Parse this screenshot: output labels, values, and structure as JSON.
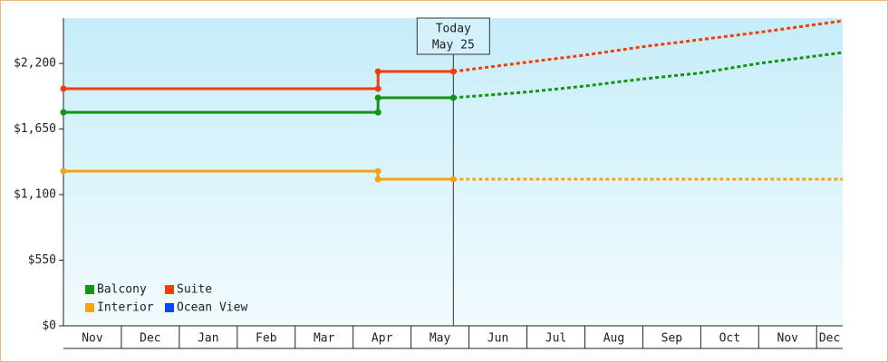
{
  "chart_data": {
    "type": "line",
    "categories": [
      "Nov",
      "Dec",
      "Jan",
      "Feb",
      "Mar",
      "Apr",
      "May",
      "Jun",
      "Jul",
      "Aug",
      "Sep",
      "Oct",
      "Nov",
      "Dec"
    ],
    "xlim": [
      0,
      13.45
    ],
    "xticks": [
      1,
      2,
      3,
      4,
      5,
      6,
      7,
      8,
      9,
      10,
      11,
      12,
      13
    ],
    "ylim": [
      0,
      2580
    ],
    "yticks": [
      {
        "value": 0,
        "label": "$0"
      },
      {
        "value": 550,
        "label": "$550"
      },
      {
        "value": 1100,
        "label": "$1,100"
      },
      {
        "value": 1650,
        "label": "$1,650"
      },
      {
        "value": 2200,
        "label": "$2,200"
      }
    ],
    "annotation": {
      "x": 6.73,
      "lines": [
        "Today",
        "May 25"
      ]
    },
    "legend": "lower left",
    "series": [
      {
        "name": "Balcony",
        "color": "#149414",
        "x": [
          0,
          5.43,
          5.43,
          6.73
        ],
        "values": [
          1790,
          1790,
          1912,
          1912
        ],
        "forecast_x": [
          6.73,
          8,
          9,
          10,
          11,
          12,
          13.45
        ],
        "forecast_values": [
          1912,
          1960,
          2010,
          2070,
          2120,
          2200,
          2291
        ]
      },
      {
        "name": "Suite",
        "color": "#f53c0a",
        "x": [
          0,
          5.43,
          5.43,
          6.73
        ],
        "values": [
          1988,
          1988,
          2132,
          2132
        ],
        "forecast_x": [
          6.73,
          8,
          9,
          10,
          11,
          12,
          13.45
        ],
        "forecast_values": [
          2132,
          2210,
          2270,
          2340,
          2400,
          2460,
          2557
        ]
      },
      {
        "name": "Interior",
        "color": "#f5a314",
        "x": [
          0,
          5.43,
          5.43,
          6.73
        ],
        "values": [
          1297,
          1297,
          1229,
          1229
        ],
        "forecast_x": [
          6.73,
          13.45
        ],
        "forecast_values": [
          1229,
          1229
        ]
      },
      {
        "name": "Ocean View",
        "color": "#0a46f5",
        "x": [],
        "values": [],
        "forecast_x": [],
        "forecast_values": []
      }
    ]
  }
}
